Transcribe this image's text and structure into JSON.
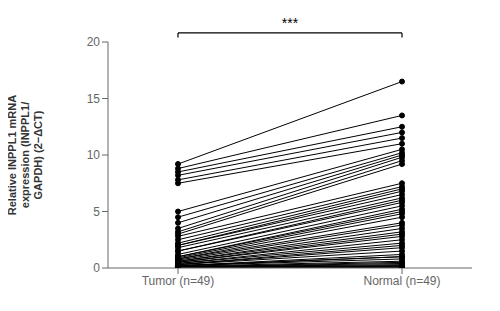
{
  "chart_data": {
    "type": "line",
    "y_label": "Relative INPPL1 mRNA\nexpression (INPPL1/\nGAPDH) (2−ΔCT)",
    "categories": [
      "Tumor (n=49)",
      "Normal (n=49)"
    ],
    "series": [
      {
        "values": [
          9.2,
          16.5
        ]
      },
      {
        "values": [
          8.8,
          13.5
        ]
      },
      {
        "values": [
          8.5,
          12.5
        ]
      },
      {
        "values": [
          8.2,
          12.0
        ]
      },
      {
        "values": [
          7.8,
          11.5
        ]
      },
      {
        "values": [
          7.5,
          11.0
        ]
      },
      {
        "values": [
          5.0,
          10.5
        ]
      },
      {
        "values": [
          4.5,
          10.2
        ]
      },
      {
        "values": [
          4.0,
          10.0
        ]
      },
      {
        "values": [
          3.5,
          9.8
        ]
      },
      {
        "values": [
          3.2,
          9.5
        ]
      },
      {
        "values": [
          3.0,
          9.2
        ]
      },
      {
        "values": [
          2.8,
          7.5
        ]
      },
      {
        "values": [
          2.5,
          7.2
        ]
      },
      {
        "values": [
          2.2,
          7.0
        ]
      },
      {
        "values": [
          2.0,
          6.8
        ]
      },
      {
        "values": [
          2.0,
          6.5
        ]
      },
      {
        "values": [
          1.8,
          6.2
        ]
      },
      {
        "values": [
          1.5,
          6.0
        ]
      },
      {
        "values": [
          1.5,
          5.8
        ]
      },
      {
        "values": [
          1.2,
          5.5
        ]
      },
      {
        "values": [
          1.0,
          5.2
        ]
      },
      {
        "values": [
          1.0,
          5.0
        ]
      },
      {
        "values": [
          0.9,
          4.8
        ]
      },
      {
        "values": [
          0.8,
          4.5
        ]
      },
      {
        "values": [
          0.8,
          4.0
        ]
      },
      {
        "values": [
          0.7,
          3.8
        ]
      },
      {
        "values": [
          0.6,
          3.5
        ]
      },
      {
        "values": [
          0.6,
          3.2
        ]
      },
      {
        "values": [
          0.5,
          3.0
        ]
      },
      {
        "values": [
          0.5,
          2.8
        ]
      },
      {
        "values": [
          0.4,
          2.5
        ]
      },
      {
        "values": [
          0.4,
          2.2
        ]
      },
      {
        "values": [
          0.3,
          2.0
        ]
      },
      {
        "values": [
          0.3,
          1.8
        ]
      },
      {
        "values": [
          0.3,
          1.5
        ]
      },
      {
        "values": [
          0.2,
          1.2
        ]
      },
      {
        "values": [
          0.2,
          1.0
        ]
      },
      {
        "values": [
          0.2,
          1.0
        ]
      },
      {
        "values": [
          0.2,
          0.8
        ]
      },
      {
        "values": [
          0.15,
          0.6
        ]
      },
      {
        "values": [
          0.1,
          0.5
        ]
      },
      {
        "values": [
          0.1,
          0.4
        ]
      },
      {
        "values": [
          0.1,
          0.3
        ]
      },
      {
        "values": [
          0.1,
          0.2
        ]
      },
      {
        "values": [
          0.05,
          0.2
        ]
      },
      {
        "values": [
          0.05,
          0.15
        ]
      },
      {
        "values": [
          0.02,
          0.1
        ]
      },
      {
        "values": [
          0.0,
          0.05
        ]
      }
    ],
    "color": "#000000",
    "marker": "circle",
    "ylim": [
      0,
      20
    ],
    "yticks": [
      0,
      5,
      10,
      15,
      20
    ],
    "grid": false,
    "annotations": [
      "***"
    ]
  }
}
